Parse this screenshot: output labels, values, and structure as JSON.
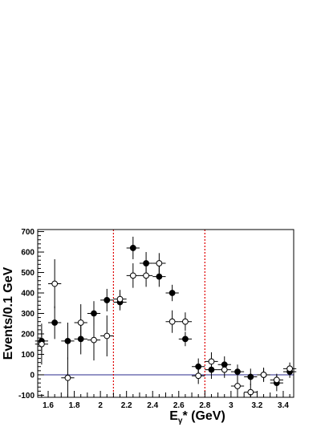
{
  "chart_data": {
    "type": "scatter",
    "xlabel": "E",
    "xlabel_sub": "γ",
    "xlabel_rest": "* (GeV)",
    "ylabel": "Events/0.1 GeV",
    "xlim": [
      1.52,
      3.48
    ],
    "ylim": [
      -110,
      710
    ],
    "x_ticks": [
      1.6,
      1.8,
      2.0,
      2.2,
      2.4,
      2.6,
      2.8,
      3.0,
      3.2,
      3.4
    ],
    "x_tick_labels": [
      "1.6",
      "1.8",
      "2",
      "2.2",
      "2.4",
      "2.6",
      "2.8",
      "3",
      "3.2",
      "3.4"
    ],
    "y_ticks": [
      -100,
      0,
      100,
      200,
      300,
      400,
      500,
      600,
      700
    ],
    "y_tick_labels": [
      "-100",
      "0",
      "100",
      "200",
      "300",
      "400",
      "500",
      "600",
      "700"
    ],
    "x_bin_half_width": 0.05,
    "vertical_lines": [
      2.1,
      2.8
    ],
    "vertical_line_color": "#e00000",
    "zero_line_color": "#2a2a8c",
    "series": [
      {
        "marker": "filled-circle",
        "points": [
          {
            "x": 1.55,
            "y": 165,
            "err": 55
          },
          {
            "x": 1.65,
            "y": 255,
            "err": 80
          },
          {
            "x": 1.75,
            "y": 165,
            "err": 90
          },
          {
            "x": 1.85,
            "y": 175,
            "err": 75
          },
          {
            "x": 1.95,
            "y": 300,
            "err": 60
          },
          {
            "x": 2.05,
            "y": 365,
            "err": 55
          },
          {
            "x": 2.15,
            "y": 355,
            "err": 40
          },
          {
            "x": 2.25,
            "y": 620,
            "err": 55
          },
          {
            "x": 2.35,
            "y": 545,
            "err": 55
          },
          {
            "x": 2.45,
            "y": 480,
            "err": 50
          },
          {
            "x": 2.55,
            "y": 400,
            "err": 40
          },
          {
            "x": 2.65,
            "y": 175,
            "err": 35
          },
          {
            "x": 2.75,
            "y": 40,
            "err": 40
          },
          {
            "x": 2.85,
            "y": 25,
            "err": 45
          },
          {
            "x": 2.95,
            "y": 50,
            "err": 40
          },
          {
            "x": 3.05,
            "y": 15,
            "err": 35
          },
          {
            "x": 3.15,
            "y": -10,
            "err": 40
          },
          {
            "x": 3.25,
            "y": 0,
            "err": 30
          },
          {
            "x": 3.35,
            "y": -40,
            "err": 40
          },
          {
            "x": 3.45,
            "y": 15,
            "err": 30
          }
        ]
      },
      {
        "marker": "open-circle",
        "points": [
          {
            "x": 1.55,
            "y": 150,
            "err": 100
          },
          {
            "x": 1.65,
            "y": 445,
            "err": 120
          },
          {
            "x": 1.75,
            "y": -15,
            "err": 100
          },
          {
            "x": 1.85,
            "y": 255,
            "err": 90
          },
          {
            "x": 1.95,
            "y": 170,
            "err": 100
          },
          {
            "x": 2.05,
            "y": 190,
            "err": 100
          },
          {
            "x": 2.15,
            "y": 370,
            "err": 45
          },
          {
            "x": 2.25,
            "y": 485,
            "err": 60
          },
          {
            "x": 2.35,
            "y": 485,
            "err": 55
          },
          {
            "x": 2.45,
            "y": 545,
            "err": 50
          },
          {
            "x": 2.55,
            "y": 260,
            "err": 55
          },
          {
            "x": 2.65,
            "y": 260,
            "err": 45
          },
          {
            "x": 2.75,
            "y": -5,
            "err": 40
          },
          {
            "x": 2.85,
            "y": 65,
            "err": 45
          },
          {
            "x": 2.95,
            "y": 25,
            "err": 40
          },
          {
            "x": 3.05,
            "y": -55,
            "err": 45
          },
          {
            "x": 3.15,
            "y": -85,
            "err": 40
          },
          {
            "x": 3.25,
            "y": 0,
            "err": 35
          },
          {
            "x": 3.35,
            "y": -25,
            "err": 30
          },
          {
            "x": 3.45,
            "y": 30,
            "err": 30
          }
        ]
      }
    ]
  }
}
